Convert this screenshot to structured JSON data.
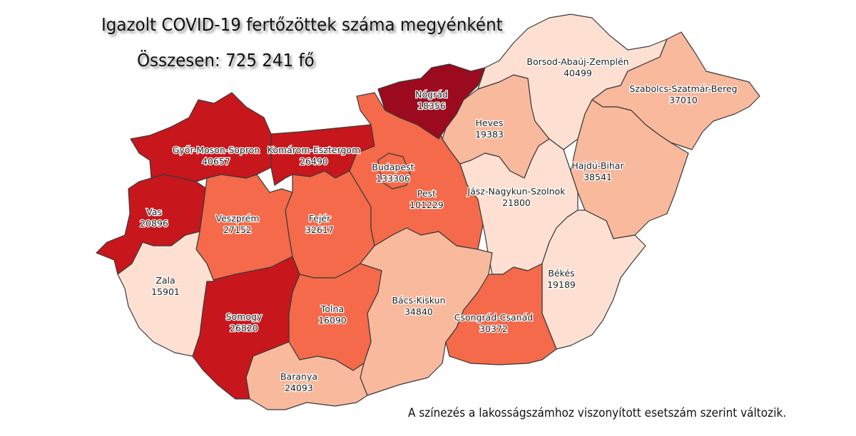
{
  "title": "Igazolt COVID-19 fertőzöttek száma megyénként",
  "total": "Összesen: 725 241 fő",
  "note": "A színezés a lakosságszámhoz viszonyított esetszám szerint változik.",
  "color_scale": {
    "darkest": "#9b0a1e",
    "dark": "#c8161d",
    "medium": "#f46a4a",
    "light": "#f9b99d",
    "lightest": "#fde0d2"
  },
  "counties": [
    {
      "id": "gyor",
      "name": "Győr-Moson-Sopron",
      "value": "40657",
      "color": "#c8161d"
    },
    {
      "id": "komarom",
      "name": "Komárom-Esztergom",
      "value": "26490",
      "color": "#c8161d"
    },
    {
      "id": "vas",
      "name": "Vas",
      "value": "20896",
      "color": "#c8161d"
    },
    {
      "id": "veszprem",
      "name": "Veszprém",
      "value": "27152",
      "color": "#f46a4a"
    },
    {
      "id": "fejer",
      "name": "Fejér",
      "value": "32617",
      "color": "#f46a4a"
    },
    {
      "id": "pest",
      "name": "Pest",
      "value": "101229",
      "color": "#f46a4a"
    },
    {
      "id": "budapest",
      "name": "Budapest",
      "value": "133306",
      "color": "#f46a4a"
    },
    {
      "id": "nograd",
      "name": "Nógrád",
      "value": "18356",
      "color": "#9b0a1e"
    },
    {
      "id": "heves",
      "name": "Heves",
      "value": "19383",
      "color": "#f9b99d"
    },
    {
      "id": "borsod",
      "name": "Borsod-Abaúj-Zemplén",
      "value": "40499",
      "color": "#fde0d2"
    },
    {
      "id": "szabolcs",
      "name": "Szabolcs-Szatmár-Bereg",
      "value": "37010",
      "color": "#f9b99d"
    },
    {
      "id": "hajdu",
      "name": "Hajdú-Bihar",
      "value": "38541",
      "color": "#f9b99d"
    },
    {
      "id": "jasz",
      "name": "Jász-Nagykun-Szolnok",
      "value": "21800",
      "color": "#fde0d2"
    },
    {
      "id": "bekes",
      "name": "Békés",
      "value": "19189",
      "color": "#fde0d2"
    },
    {
      "id": "csongrad",
      "name": "Csongrád-Csanád",
      "value": "30372",
      "color": "#f46a4a"
    },
    {
      "id": "bacs",
      "name": "Bács-Kiskun",
      "value": "34840",
      "color": "#f9b99d"
    },
    {
      "id": "tolna",
      "name": "Tolna",
      "value": "16090",
      "color": "#f46a4a"
    },
    {
      "id": "somogy",
      "name": "Somogy",
      "value": "26820",
      "color": "#c8161d"
    },
    {
      "id": "zala",
      "name": "Zala",
      "value": "15901",
      "color": "#fde0d2"
    },
    {
      "id": "baranya",
      "name": "Baranya",
      "value": "24093",
      "color": "#f9b99d"
    }
  ]
}
